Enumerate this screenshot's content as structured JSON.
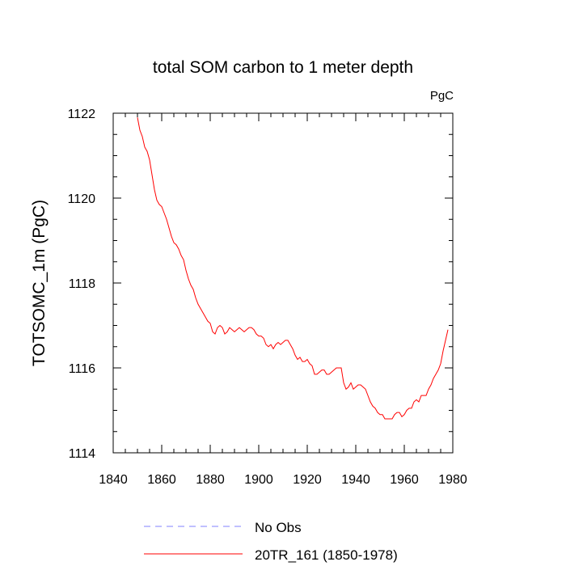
{
  "chart_data": {
    "type": "line",
    "title": "total SOM carbon to 1 meter depth",
    "units_label": "PgC",
    "ylabel": "TOTSOMC_1m  (PgC)",
    "xlabel": "",
    "xlim": [
      1840,
      1980
    ],
    "ylim": [
      1114,
      1122
    ],
    "x_ticks": [
      "1840",
      "1860",
      "1880",
      "1900",
      "1920",
      "1940",
      "1960",
      "1980"
    ],
    "y_ticks": [
      "1114",
      "1116",
      "1118",
      "1120",
      "1122"
    ],
    "grid": false,
    "legend_position": "bottom-center",
    "series": [
      {
        "name": "No Obs",
        "color": "#8080ff",
        "dash": "dashed",
        "x": [],
        "y": []
      },
      {
        "name": "20TR_161 (1850-1978)",
        "color": "#ff0000",
        "dash": "solid",
        "x": [
          1850,
          1851,
          1852,
          1853,
          1854,
          1855,
          1856,
          1857,
          1858,
          1859,
          1860,
          1861,
          1862,
          1863,
          1864,
          1865,
          1866,
          1867,
          1868,
          1869,
          1870,
          1871,
          1872,
          1873,
          1874,
          1875,
          1876,
          1877,
          1878,
          1879,
          1880,
          1881,
          1882,
          1883,
          1884,
          1885,
          1886,
          1887,
          1888,
          1889,
          1890,
          1891,
          1892,
          1893,
          1894,
          1895,
          1896,
          1897,
          1898,
          1899,
          1900,
          1901,
          1902,
          1903,
          1904,
          1905,
          1906,
          1907,
          1908,
          1909,
          1910,
          1911,
          1912,
          1913,
          1914,
          1915,
          1916,
          1917,
          1918,
          1919,
          1920,
          1921,
          1922,
          1923,
          1924,
          1925,
          1926,
          1927,
          1928,
          1929,
          1930,
          1931,
          1932,
          1933,
          1934,
          1935,
          1936,
          1937,
          1938,
          1939,
          1940,
          1941,
          1942,
          1943,
          1944,
          1945,
          1946,
          1947,
          1948,
          1949,
          1950,
          1951,
          1952,
          1953,
          1954,
          1955,
          1956,
          1957,
          1958,
          1959,
          1960,
          1961,
          1962,
          1963,
          1964,
          1965,
          1966,
          1967,
          1968,
          1969,
          1970,
          1971,
          1972,
          1973,
          1974,
          1975,
          1976,
          1977,
          1978
        ],
        "y": [
          1121.9,
          1121.6,
          1121.45,
          1121.2,
          1121.1,
          1120.9,
          1120.55,
          1120.2,
          1119.95,
          1119.85,
          1119.8,
          1119.65,
          1119.5,
          1119.3,
          1119.1,
          1118.95,
          1118.9,
          1118.8,
          1118.65,
          1118.55,
          1118.3,
          1118.1,
          1117.95,
          1117.85,
          1117.65,
          1117.5,
          1117.4,
          1117.3,
          1117.2,
          1117.1,
          1117.05,
          1116.85,
          1116.8,
          1116.95,
          1117.0,
          1116.95,
          1116.8,
          1116.85,
          1116.95,
          1116.9,
          1116.85,
          1116.9,
          1116.95,
          1116.9,
          1116.85,
          1116.9,
          1116.95,
          1116.95,
          1116.9,
          1116.8,
          1116.75,
          1116.75,
          1116.7,
          1116.55,
          1116.5,
          1116.55,
          1116.45,
          1116.55,
          1116.6,
          1116.55,
          1116.6,
          1116.65,
          1116.65,
          1116.55,
          1116.45,
          1116.3,
          1116.2,
          1116.25,
          1116.15,
          1116.15,
          1116.2,
          1116.1,
          1116.05,
          1115.85,
          1115.85,
          1115.9,
          1115.95,
          1115.95,
          1115.85,
          1115.85,
          1115.9,
          1115.95,
          1116.0,
          1116.0,
          1116.0,
          1115.65,
          1115.5,
          1115.55,
          1115.65,
          1115.5,
          1115.55,
          1115.6,
          1115.6,
          1115.55,
          1115.5,
          1115.35,
          1115.2,
          1115.1,
          1115.05,
          1114.95,
          1114.9,
          1114.9,
          1114.8,
          1114.8,
          1114.8,
          1114.8,
          1114.9,
          1114.95,
          1114.95,
          1114.85,
          1114.9,
          1115.0,
          1115.05,
          1115.05,
          1115.2,
          1115.25,
          1115.2,
          1115.35,
          1115.35,
          1115.35,
          1115.5,
          1115.6,
          1115.75,
          1115.85,
          1115.95,
          1116.1,
          1116.4,
          1116.65,
          1116.9
        ]
      }
    ]
  }
}
